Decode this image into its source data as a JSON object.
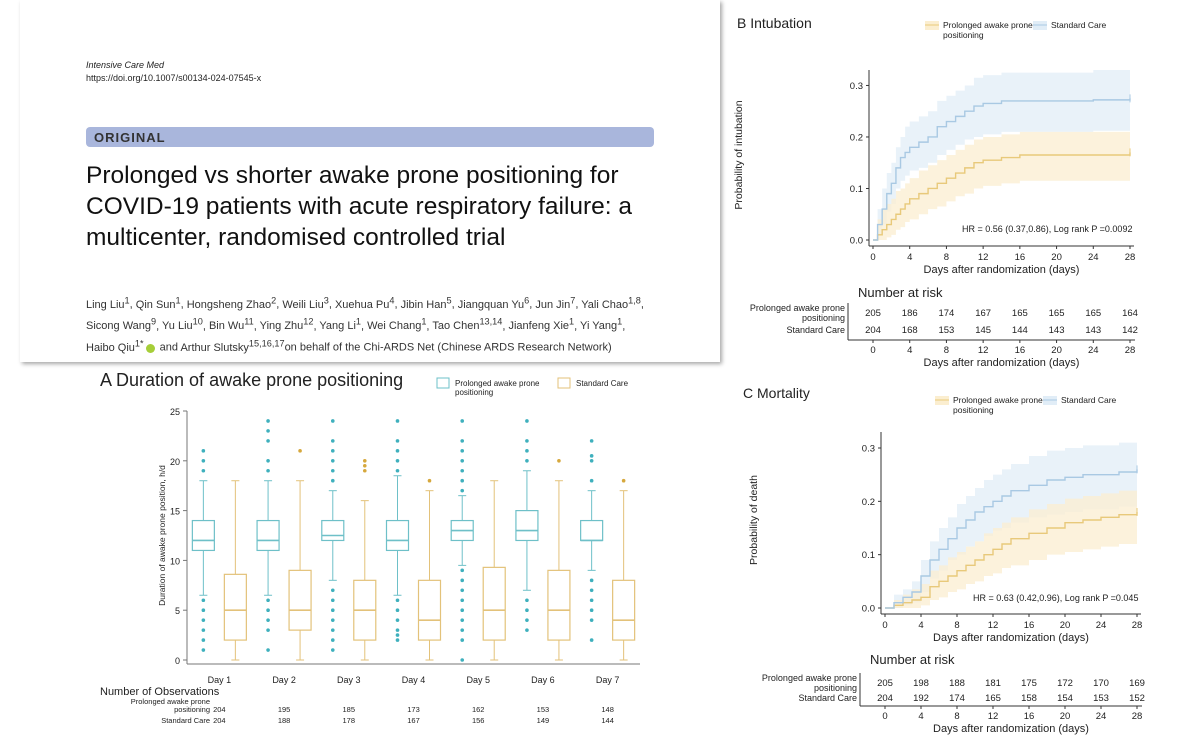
{
  "header": {
    "journal": "Intensive Care Med",
    "doi": "https://doi.org/10.1007/s00134-024-07545-x",
    "badge": "ORIGINAL",
    "title": "Prolonged vs shorter awake prone positioning for COVID-19 patients with acute respiratory failure: a multicenter, randomised controlled trial",
    "authors": [
      [
        "Ling Liu",
        "1"
      ],
      [
        "Qin Sun",
        "1"
      ],
      [
        "Hongsheng Zhao",
        "2"
      ],
      [
        "Weili Liu",
        "3"
      ],
      [
        "Xuehua Pu",
        "4"
      ],
      [
        "Jibin Han",
        "5"
      ],
      [
        "Jiangquan Yu",
        "6"
      ],
      [
        "Jun Jin",
        "7"
      ],
      [
        "Yali Chao",
        "1,8"
      ],
      [
        "Sicong Wang",
        "9"
      ],
      [
        "Yu Liu",
        "10"
      ],
      [
        "Bin Wu",
        "11"
      ],
      [
        "Ying Zhu",
        "12"
      ],
      [
        "Yang Li",
        "1"
      ],
      [
        "Wei Chang",
        "1"
      ],
      [
        "Tao Chen",
        "13,14"
      ],
      [
        "Jianfeng Xie",
        "1"
      ],
      [
        "Yi Yang",
        "1"
      ],
      [
        "Haibo Qiu",
        "1*"
      ]
    ],
    "last_author": "Arthur Slutsky",
    "last_author_sup": "15,16,17",
    "and_word": "and",
    "behalf": "on behalf of the Chi-ARDS Net (Chinese ARDS Research Network)"
  },
  "colors": {
    "prolonged": "#6ec0c8",
    "standard": "#e3c27a",
    "km_blue": "#a9c9e3",
    "km_gold": "#e8c97a"
  },
  "chart_data": [
    {
      "type": "box",
      "title": "A Duration of awake prone positioning",
      "ylabel": "Duration of awake prone position, h/d",
      "xlabel": "",
      "ylim": [
        0,
        25
      ],
      "yticks": [
        0,
        5,
        10,
        15,
        20,
        25
      ],
      "categories": [
        "Day 1",
        "Day 2",
        "Day 3",
        "Day 4",
        "Day 5",
        "Day 6",
        "Day 7"
      ],
      "legend": [
        "Prolonged awake prone positioning",
        "Standard Care"
      ],
      "series": [
        {
          "name": "Prolonged awake prone positioning",
          "boxes": [
            {
              "min": 6.5,
              "q1": 11,
              "med": 12,
              "q3": 14,
              "max": 18,
              "out": [
                1,
                2,
                3,
                4,
                5,
                6,
                19,
                20,
                21
              ]
            },
            {
              "min": 6.5,
              "q1": 11,
              "med": 12,
              "q3": 14,
              "max": 18,
              "out": [
                1,
                3,
                4,
                5,
                6,
                19,
                20,
                22,
                23,
                24
              ]
            },
            {
              "min": 8,
              "q1": 12,
              "med": 12.5,
              "q3": 14,
              "max": 17,
              "out": [
                1,
                2,
                3,
                4,
                5,
                6,
                7,
                18,
                19,
                20,
                21,
                22,
                24
              ]
            },
            {
              "min": 6.5,
              "q1": 11,
              "med": 12,
              "q3": 14,
              "max": 18.5,
              "out": [
                2,
                2.5,
                3,
                4,
                5,
                6,
                19,
                20,
                21,
                22,
                24
              ]
            },
            {
              "min": 9.5,
              "q1": 12,
              "med": 13,
              "q3": 14,
              "max": 16.5,
              "out": [
                0,
                2,
                3,
                4,
                5,
                6,
                7,
                8,
                9,
                17,
                18,
                19,
                20,
                21,
                22,
                24
              ]
            },
            {
              "min": 7,
              "q1": 12,
              "med": 13,
              "q3": 15,
              "max": 19,
              "out": [
                3,
                4,
                5,
                6,
                20,
                21,
                22,
                24
              ]
            },
            {
              "min": 9,
              "q1": 12,
              "med": 12,
              "q3": 14,
              "max": 17,
              "out": [
                2,
                4,
                5,
                6,
                7,
                8,
                18,
                20,
                20.5,
                22
              ]
            }
          ]
        },
        {
          "name": "Standard Care",
          "boxes": [
            {
              "min": 0,
              "q1": 2,
              "med": 5,
              "q3": 8.6,
              "max": 18,
              "out": []
            },
            {
              "min": 0,
              "q1": 3,
              "med": 5,
              "q3": 9,
              "max": 18,
              "out": [
                21
              ]
            },
            {
              "min": 0,
              "q1": 2,
              "med": 5,
              "q3": 8,
              "max": 16,
              "out": [
                19,
                19.5,
                20
              ]
            },
            {
              "min": 0,
              "q1": 2,
              "med": 4,
              "q3": 8,
              "max": 17,
              "out": [
                18
              ]
            },
            {
              "min": 0,
              "q1": 2,
              "med": 5,
              "q3": 9.3,
              "max": 18,
              "out": []
            },
            {
              "min": 0,
              "q1": 2,
              "med": 5,
              "q3": 9,
              "max": 18,
              "out": [
                20
              ]
            },
            {
              "min": 0,
              "q1": 2,
              "med": 4,
              "q3": 8,
              "max": 17,
              "out": [
                18
              ]
            }
          ]
        }
      ],
      "observations_label": "Number of Observations",
      "observations": [
        {
          "name": "Prolonged awake prone\npositioning",
          "values": [
            204,
            195,
            185,
            173,
            162,
            153,
            148
          ]
        },
        {
          "name": "Standard Care",
          "values": [
            204,
            188,
            178,
            167,
            156,
            149,
            144
          ]
        }
      ]
    },
    {
      "type": "line",
      "title": "B Intubation",
      "ylabel": "Probability of intubation",
      "xlabel": "Days after randomization (days)",
      "xlim": [
        0,
        28
      ],
      "ylim": [
        0,
        0.33
      ],
      "xticks": [
        0,
        4,
        8,
        12,
        16,
        20,
        24,
        28
      ],
      "yticks": [
        0.0,
        0.1,
        0.2,
        0.3
      ],
      "legend": [
        "Prolonged awake prone positioning",
        "Standard Care"
      ],
      "annotation": "HR = 0.56 (0.37,0.86), Log rank P =0.0092",
      "series": [
        {
          "name": "Prolonged awake prone positioning",
          "x": [
            0,
            0.5,
            1,
            1.5,
            2,
            2.5,
            3,
            3.5,
            4,
            5,
            6,
            7,
            8,
            9,
            10,
            11,
            12,
            14,
            16,
            20,
            24,
            28
          ],
          "y": [
            0,
            0.01,
            0.02,
            0.03,
            0.04,
            0.05,
            0.06,
            0.07,
            0.08,
            0.09,
            0.1,
            0.11,
            0.12,
            0.13,
            0.14,
            0.15,
            0.155,
            0.16,
            0.165,
            0.165,
            0.165,
            0.17
          ],
          "lo": [
            0,
            0,
            0,
            0.005,
            0.01,
            0.02,
            0.025,
            0.035,
            0.04,
            0.05,
            0.06,
            0.065,
            0.075,
            0.085,
            0.09,
            0.1,
            0.105,
            0.11,
            0.115,
            0.115,
            0.115,
            0.12
          ],
          "hi": [
            0,
            0.04,
            0.06,
            0.07,
            0.08,
            0.095,
            0.1,
            0.11,
            0.12,
            0.135,
            0.145,
            0.155,
            0.165,
            0.175,
            0.185,
            0.195,
            0.2,
            0.205,
            0.21,
            0.21,
            0.21,
            0.215
          ]
        },
        {
          "name": "Standard Care",
          "x": [
            0,
            0.5,
            1,
            1.5,
            2,
            2.5,
            3,
            3.5,
            4,
            5,
            6,
            7,
            8,
            9,
            10,
            11,
            12,
            14,
            16,
            20,
            24,
            28
          ],
          "y": [
            0,
            0.03,
            0.06,
            0.09,
            0.11,
            0.14,
            0.16,
            0.17,
            0.18,
            0.19,
            0.2,
            0.22,
            0.23,
            0.24,
            0.25,
            0.26,
            0.265,
            0.27,
            0.27,
            0.27,
            0.272,
            0.275
          ],
          "lo": [
            0,
            0.01,
            0.03,
            0.055,
            0.07,
            0.1,
            0.115,
            0.125,
            0.135,
            0.14,
            0.15,
            0.165,
            0.175,
            0.185,
            0.195,
            0.2,
            0.205,
            0.21,
            0.21,
            0.21,
            0.212,
            0.215
          ],
          "hi": [
            0,
            0.06,
            0.1,
            0.13,
            0.15,
            0.18,
            0.2,
            0.22,
            0.23,
            0.24,
            0.25,
            0.27,
            0.28,
            0.29,
            0.3,
            0.315,
            0.32,
            0.325,
            0.325,
            0.325,
            0.33,
            0.335
          ]
        }
      ],
      "risk_label": "Number at risk",
      "risk": [
        {
          "name": "Prolonged awake prone\npositioning",
          "values": [
            205,
            186,
            174,
            167,
            165,
            165,
            165,
            164
          ]
        },
        {
          "name": "Standard Care",
          "values": [
            204,
            168,
            153,
            145,
            144,
            143,
            143,
            142
          ]
        }
      ]
    },
    {
      "type": "line",
      "title": "C Mortality",
      "ylabel": "Probability of death",
      "xlabel": "Days after randomization (days)",
      "xlim": [
        0,
        28
      ],
      "ylim": [
        0,
        0.33
      ],
      "xticks": [
        0,
        4,
        8,
        12,
        16,
        20,
        24,
        28
      ],
      "yticks": [
        0.0,
        0.1,
        0.2,
        0.3
      ],
      "legend": [
        "Prolonged awake prone positioning",
        "Standard Care"
      ],
      "annotation": "HR = 0.63 (0.42,0.96), Log rank P =0.045",
      "series": [
        {
          "name": "Prolonged awake prone positioning",
          "x": [
            0,
            1,
            2,
            3,
            4,
            5,
            6,
            7,
            8,
            9,
            10,
            11,
            12,
            13,
            14,
            16,
            18,
            20,
            22,
            24,
            26,
            28
          ],
          "y": [
            0,
            0.005,
            0.01,
            0.015,
            0.02,
            0.04,
            0.05,
            0.06,
            0.07,
            0.08,
            0.09,
            0.1,
            0.11,
            0.12,
            0.13,
            0.14,
            0.15,
            0.16,
            0.165,
            0.17,
            0.175,
            0.18
          ],
          "lo": [
            0,
            0,
            0,
            0,
            0.005,
            0.015,
            0.02,
            0.03,
            0.035,
            0.045,
            0.05,
            0.06,
            0.065,
            0.075,
            0.08,
            0.09,
            0.1,
            0.105,
            0.11,
            0.115,
            0.12,
            0.12
          ],
          "hi": [
            0,
            0.015,
            0.025,
            0.035,
            0.045,
            0.07,
            0.08,
            0.095,
            0.105,
            0.115,
            0.125,
            0.14,
            0.15,
            0.16,
            0.17,
            0.185,
            0.195,
            0.205,
            0.21,
            0.215,
            0.22,
            0.225
          ]
        },
        {
          "name": "Standard Care",
          "x": [
            0,
            1,
            2,
            3,
            4,
            5,
            6,
            7,
            8,
            9,
            10,
            11,
            12,
            13,
            14,
            16,
            18,
            20,
            22,
            24,
            26,
            28
          ],
          "y": [
            0,
            0.01,
            0.02,
            0.03,
            0.06,
            0.09,
            0.11,
            0.13,
            0.15,
            0.165,
            0.18,
            0.19,
            0.2,
            0.21,
            0.22,
            0.23,
            0.24,
            0.245,
            0.25,
            0.25,
            0.255,
            0.26
          ],
          "lo": [
            0,
            0,
            0.005,
            0.01,
            0.03,
            0.055,
            0.07,
            0.09,
            0.1,
            0.115,
            0.125,
            0.135,
            0.145,
            0.15,
            0.16,
            0.17,
            0.175,
            0.18,
            0.185,
            0.185,
            0.19,
            0.195
          ],
          "hi": [
            0,
            0.025,
            0.035,
            0.05,
            0.09,
            0.125,
            0.15,
            0.17,
            0.195,
            0.21,
            0.225,
            0.24,
            0.25,
            0.26,
            0.27,
            0.285,
            0.295,
            0.3,
            0.305,
            0.305,
            0.31,
            0.315
          ]
        }
      ],
      "risk_label": "Number at risk",
      "risk": [
        {
          "name": "Prolonged awake prone\npositioning",
          "values": [
            205,
            198,
            188,
            181,
            175,
            172,
            170,
            169
          ]
        },
        {
          "name": "Standard Care",
          "values": [
            204,
            192,
            174,
            165,
            158,
            154,
            153,
            152
          ]
        }
      ]
    }
  ]
}
